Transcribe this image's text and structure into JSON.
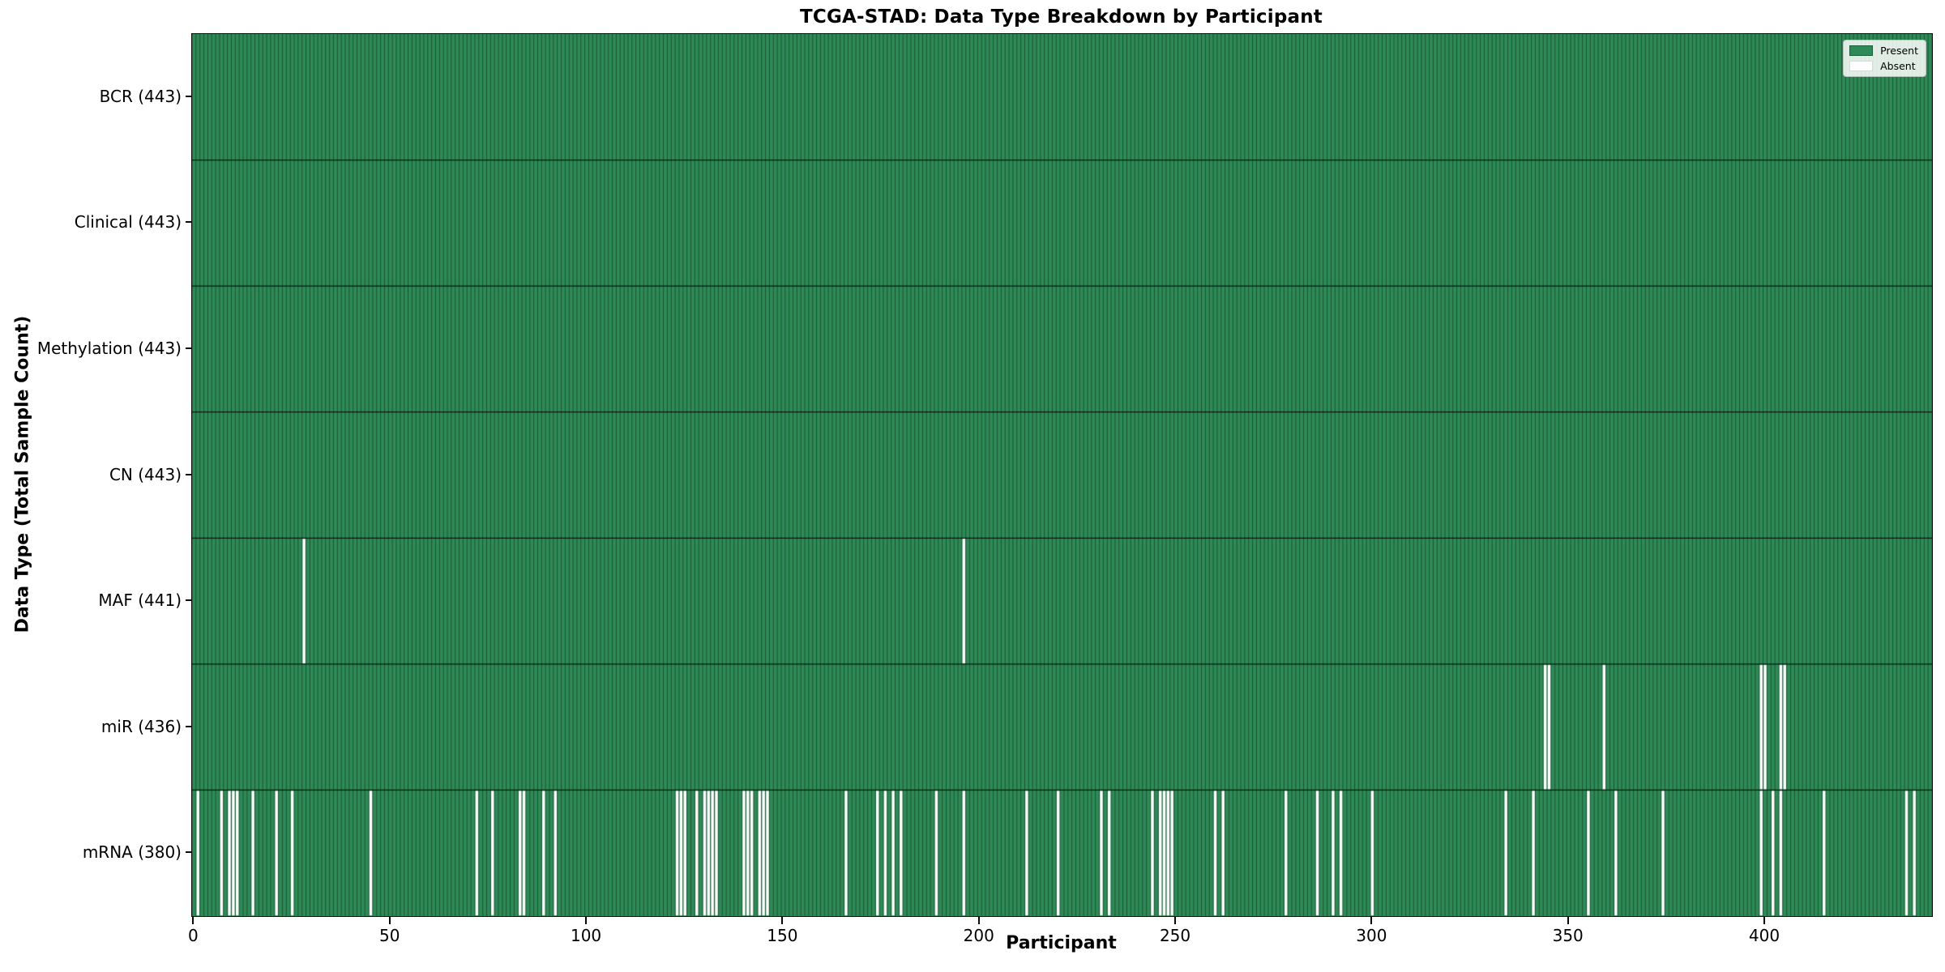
{
  "chart_data": {
    "type": "heatmap",
    "title": "TCGA-STAD: Data Type Breakdown by Participant",
    "xlabel": "Participant",
    "ylabel": "Data Type (Total Sample Count)",
    "n_participants": 443,
    "x_ticks": [
      0,
      50,
      100,
      150,
      200,
      250,
      300,
      350,
      400
    ],
    "grid": false,
    "legend_position": "upper right",
    "legend": [
      {
        "label": "Present",
        "color": "#2e8b57"
      },
      {
        "label": "Absent",
        "color": "#ffffff"
      }
    ],
    "colors": {
      "present": "#2e8b57",
      "absent": "#ffffff",
      "bar_edge": "rgba(0,0,0,0.45)",
      "row_border": "rgba(0,0,0,0.8)",
      "axis": "#0a0a0a"
    },
    "rows": [
      {
        "label": "BCR (443)",
        "data_type": "BCR",
        "present_count": 443,
        "absent": []
      },
      {
        "label": "Clinical (443)",
        "data_type": "Clinical",
        "present_count": 443,
        "absent": []
      },
      {
        "label": "Methylation (443)",
        "data_type": "Methylation",
        "present_count": 443,
        "absent": []
      },
      {
        "label": "CN (443)",
        "data_type": "CN",
        "present_count": 443,
        "absent": []
      },
      {
        "label": "MAF (441)",
        "data_type": "MAF",
        "present_count": 441,
        "absent": [
          28,
          196
        ]
      },
      {
        "label": "miR (436)",
        "data_type": "miR",
        "present_count": 436,
        "absent": [
          344,
          345,
          359,
          399,
          400,
          404,
          405
        ]
      },
      {
        "label": "mRNA (380)",
        "data_type": "mRNA",
        "present_count": 380,
        "absent": [
          1,
          7,
          9,
          10,
          11,
          15,
          21,
          25,
          45,
          72,
          76,
          83,
          84,
          89,
          92,
          123,
          124,
          125,
          128,
          130,
          131,
          132,
          133,
          140,
          141,
          142,
          144,
          145,
          146,
          166,
          174,
          176,
          178,
          180,
          189,
          196,
          212,
          220,
          231,
          233,
          244,
          246,
          247,
          248,
          249,
          260,
          262,
          278,
          286,
          290,
          292,
          300,
          334,
          341,
          355,
          362,
          374,
          399,
          402,
          404,
          415,
          436,
          438
        ]
      }
    ]
  }
}
